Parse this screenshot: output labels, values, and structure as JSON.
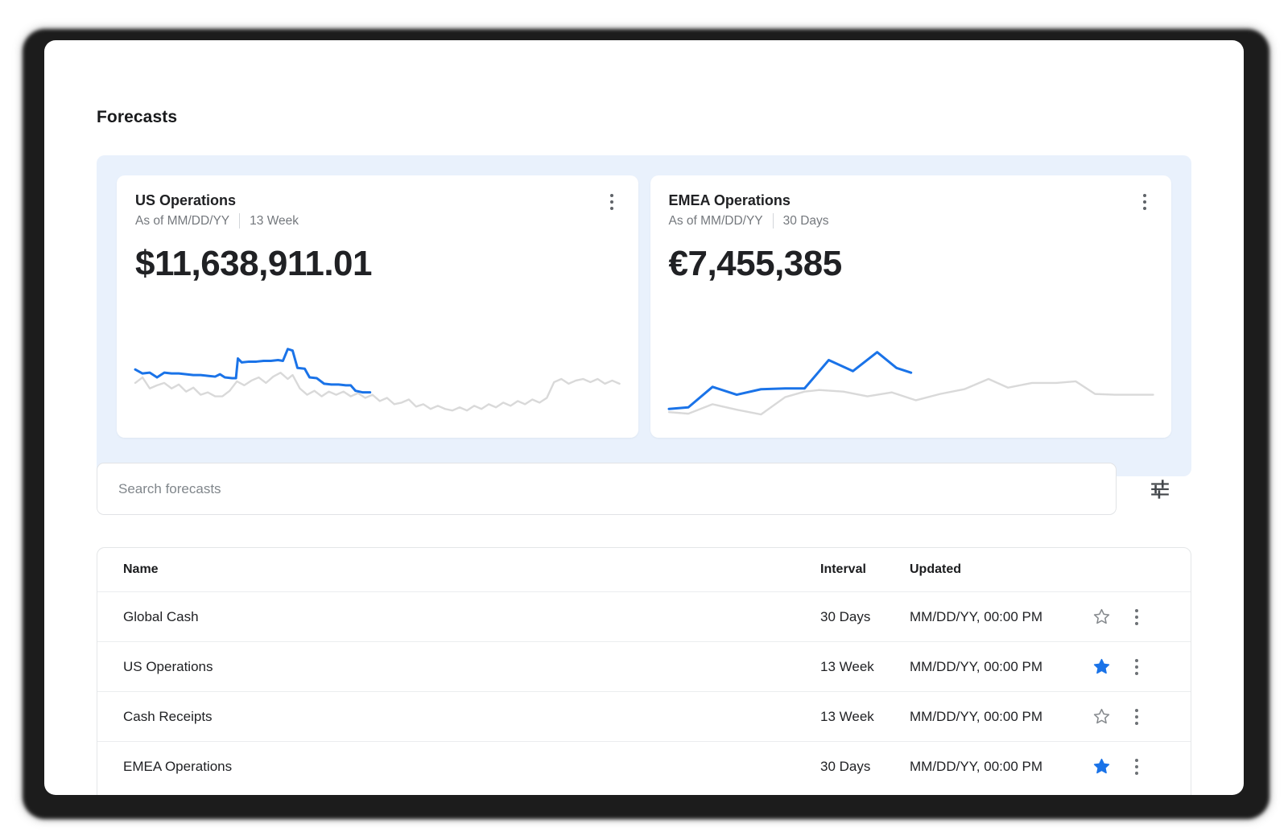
{
  "page": {
    "heading": "Forecasts"
  },
  "summary_cards": [
    {
      "title": "US Operations",
      "as_of_label": "As of MM/DD/YY",
      "interval": "13 Week",
      "amount": "$11,638,911.01"
    },
    {
      "title": "EMEA Operations",
      "as_of_label": "As of MM/DD/YY",
      "interval": "30 Days",
      "amount": "€7,455,385"
    }
  ],
  "search": {
    "placeholder": "Search forecasts"
  },
  "table": {
    "headers": {
      "name": "Name",
      "interval": "Interval",
      "updated": "Updated"
    },
    "rows": [
      {
        "name": "Global Cash",
        "interval": "30 Days",
        "updated": "MM/DD/YY, 00:00 PM",
        "starred": false
      },
      {
        "name": "US Operations",
        "interval": "13 Week",
        "updated": "MM/DD/YY, 00:00 PM",
        "starred": true
      },
      {
        "name": "Cash Receipts",
        "interval": "13 Week",
        "updated": "MM/DD/YY, 00:00 PM",
        "starred": false
      },
      {
        "name": "EMEA Operations",
        "interval": "30 Days",
        "updated": "MM/DD/YY, 00:00 PM",
        "starred": true
      }
    ]
  },
  "colors": {
    "accent_blue": "#1a73e8",
    "sparkline_gray": "#d9d9d9",
    "panel_background": "#e9f1fc",
    "star_inactive": "#85898d"
  },
  "icons": {
    "card_menu": "kebab-vertical-icon",
    "filter": "filter-sliders-icon",
    "star_filled": "star-filled-icon",
    "star_outline": "star-outline-icon"
  },
  "chart_data": [
    {
      "type": "line",
      "title": "US Operations sparkline",
      "axes": "hidden",
      "legend": "none",
      "x_range": [
        0,
        100
      ],
      "y_range": [
        0,
        100
      ],
      "series": [
        {
          "name": "reference",
          "color": "#d9d9d9",
          "points": [
            [
              0,
              45
            ],
            [
              1.5,
              52
            ],
            [
              3,
              38
            ],
            [
              4.5,
              42
            ],
            [
              6,
              45
            ],
            [
              7.5,
              38
            ],
            [
              9,
              43
            ],
            [
              10.5,
              34
            ],
            [
              12,
              39
            ],
            [
              13.5,
              30
            ],
            [
              15,
              33
            ],
            [
              16.5,
              28
            ],
            [
              18,
              28
            ],
            [
              19.5,
              35
            ],
            [
              21,
              47
            ],
            [
              22.5,
              42
            ],
            [
              24,
              48
            ],
            [
              25.5,
              52
            ],
            [
              27,
              45
            ],
            [
              28.5,
              53
            ],
            [
              30,
              58
            ],
            [
              31.5,
              50
            ],
            [
              32.5,
              55
            ],
            [
              34,
              38
            ],
            [
              35.5,
              30
            ],
            [
              37,
              35
            ],
            [
              38.5,
              28
            ],
            [
              40,
              34
            ],
            [
              41.5,
              30
            ],
            [
              43,
              34
            ],
            [
              44.5,
              28
            ],
            [
              46,
              32
            ],
            [
              47.5,
              26
            ],
            [
              49,
              30
            ],
            [
              50.5,
              22
            ],
            [
              52,
              26
            ],
            [
              53.5,
              18
            ],
            [
              55,
              20
            ],
            [
              56.5,
              24
            ],
            [
              58,
              15
            ],
            [
              59.5,
              18
            ],
            [
              61,
              12
            ],
            [
              62.5,
              16
            ],
            [
              64,
              12
            ],
            [
              65.5,
              10
            ],
            [
              67,
              14
            ],
            [
              68.5,
              10
            ],
            [
              70,
              16
            ],
            [
              71.5,
              12
            ],
            [
              73,
              18
            ],
            [
              74.5,
              14
            ],
            [
              76,
              20
            ],
            [
              77.5,
              16
            ],
            [
              79,
              22
            ],
            [
              80.5,
              18
            ],
            [
              82,
              24
            ],
            [
              83.5,
              20
            ],
            [
              85,
              26
            ],
            [
              86.5,
              46
            ],
            [
              88,
              50
            ],
            [
              89.5,
              44
            ],
            [
              91,
              48
            ],
            [
              92.5,
              50
            ],
            [
              94,
              46
            ],
            [
              95.5,
              50
            ],
            [
              97,
              44
            ],
            [
              98.5,
              48
            ],
            [
              100,
              44
            ]
          ]
        },
        {
          "name": "forecast",
          "color": "#1a73e8",
          "points": [
            [
              0,
              62
            ],
            [
              1.5,
              57
            ],
            [
              3,
              58
            ],
            [
              4.5,
              52
            ],
            [
              6,
              58
            ],
            [
              7.5,
              57
            ],
            [
              9,
              57
            ],
            [
              10.5,
              56
            ],
            [
              12,
              55
            ],
            [
              13.5,
              55
            ],
            [
              15,
              54
            ],
            [
              16.5,
              53
            ],
            [
              17.5,
              56
            ],
            [
              18.5,
              52
            ],
            [
              20,
              51
            ],
            [
              20.8,
              51
            ],
            [
              21.2,
              76
            ],
            [
              22,
              71
            ],
            [
              23.5,
              72
            ],
            [
              25,
              72
            ],
            [
              26.5,
              73
            ],
            [
              28,
              73
            ],
            [
              29.5,
              74
            ],
            [
              30.5,
              73
            ],
            [
              31.5,
              88
            ],
            [
              32.5,
              86
            ],
            [
              33.5,
              64
            ],
            [
              35,
              63
            ],
            [
              36,
              52
            ],
            [
              37.5,
              51
            ],
            [
              39,
              44
            ],
            [
              40.5,
              43
            ],
            [
              42,
              43
            ],
            [
              43.5,
              42
            ],
            [
              44.5,
              42
            ],
            [
              45.5,
              35
            ],
            [
              47,
              33
            ],
            [
              48.5,
              33
            ]
          ]
        }
      ]
    },
    {
      "type": "line",
      "title": "EMEA Operations sparkline",
      "axes": "hidden",
      "legend": "none",
      "x_range": [
        0,
        100
      ],
      "y_range": [
        0,
        100
      ],
      "series": [
        {
          "name": "reference",
          "color": "#d9d9d9",
          "points": [
            [
              0,
              8
            ],
            [
              4,
              6
            ],
            [
              9,
              18
            ],
            [
              14,
              11
            ],
            [
              19,
              5
            ],
            [
              24,
              27
            ],
            [
              28,
              34
            ],
            [
              31,
              36
            ],
            [
              36,
              34
            ],
            [
              41,
              28
            ],
            [
              46,
              33
            ],
            [
              51,
              23
            ],
            [
              56,
              31
            ],
            [
              61,
              37
            ],
            [
              66,
              50
            ],
            [
              70,
              39
            ],
            [
              75,
              45
            ],
            [
              80,
              45
            ],
            [
              84,
              47
            ],
            [
              88,
              31
            ],
            [
              92,
              30
            ],
            [
              100,
              30
            ]
          ]
        },
        {
          "name": "forecast",
          "color": "#1a73e8",
          "points": [
            [
              0,
              12
            ],
            [
              4,
              14
            ],
            [
              9,
              40
            ],
            [
              14,
              30
            ],
            [
              19,
              37
            ],
            [
              24,
              38
            ],
            [
              28,
              38
            ],
            [
              33,
              74
            ],
            [
              38,
              60
            ],
            [
              43,
              84
            ],
            [
              47,
              64
            ],
            [
              50,
              58
            ]
          ]
        }
      ]
    }
  ]
}
